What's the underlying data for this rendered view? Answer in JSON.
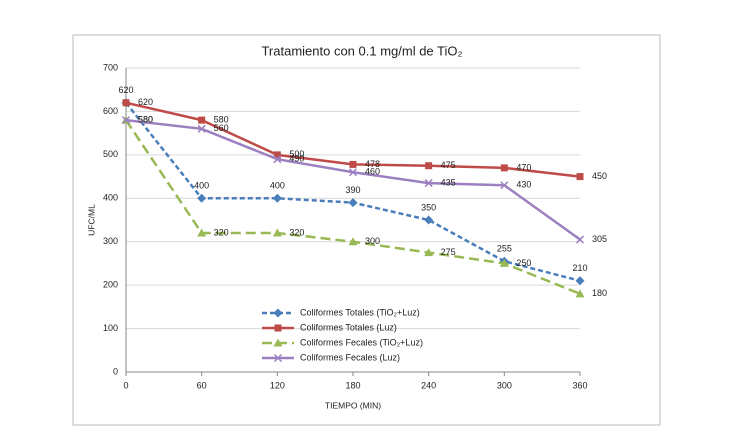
{
  "chart_data": {
    "type": "line",
    "title": "Tratamiento con 0.1 mg/ml de TiO₂",
    "x_label": "TIEMPO (MIN)",
    "y_label": "UFC/ML",
    "x": [
      0,
      60,
      120,
      180,
      240,
      300,
      360
    ],
    "xlim": [
      0,
      360
    ],
    "xticks": [
      0,
      60,
      120,
      180,
      240,
      300,
      360
    ],
    "ylim": [
      0,
      700
    ],
    "yticks": [
      0,
      100,
      200,
      300,
      400,
      500,
      600,
      700
    ],
    "grid": true,
    "legend": "lower-left",
    "series": [
      {
        "name": "Coliformes Totales (TiO₂+Luz)",
        "color": "#4a7ebb",
        "dash": "dashed",
        "marker": "diamond",
        "label_position": "above",
        "values": [
          620,
          400,
          400,
          390,
          350,
          255,
          210
        ]
      },
      {
        "name": "Coliformes Totales (Luz)",
        "color": "#be4b48",
        "dash": "solid",
        "marker": "square",
        "label_position": "right",
        "values": [
          620,
          580,
          500,
          478,
          475,
          470,
          450
        ]
      },
      {
        "name": "Coliformes Fecales (TiO₂+Luz)",
        "color": "#98b954",
        "dash": "long-dashed",
        "marker": "triangle",
        "label_position": "right",
        "values": [
          580,
          320,
          320,
          300,
          275,
          250,
          180
        ]
      },
      {
        "name": "Coliformes Fecales (Luz)",
        "color": "#9b7fc0",
        "dash": "solid",
        "marker": "cross",
        "label_position": "right",
        "values": [
          580,
          560,
          490,
          460,
          435,
          430,
          305
        ]
      }
    ]
  }
}
